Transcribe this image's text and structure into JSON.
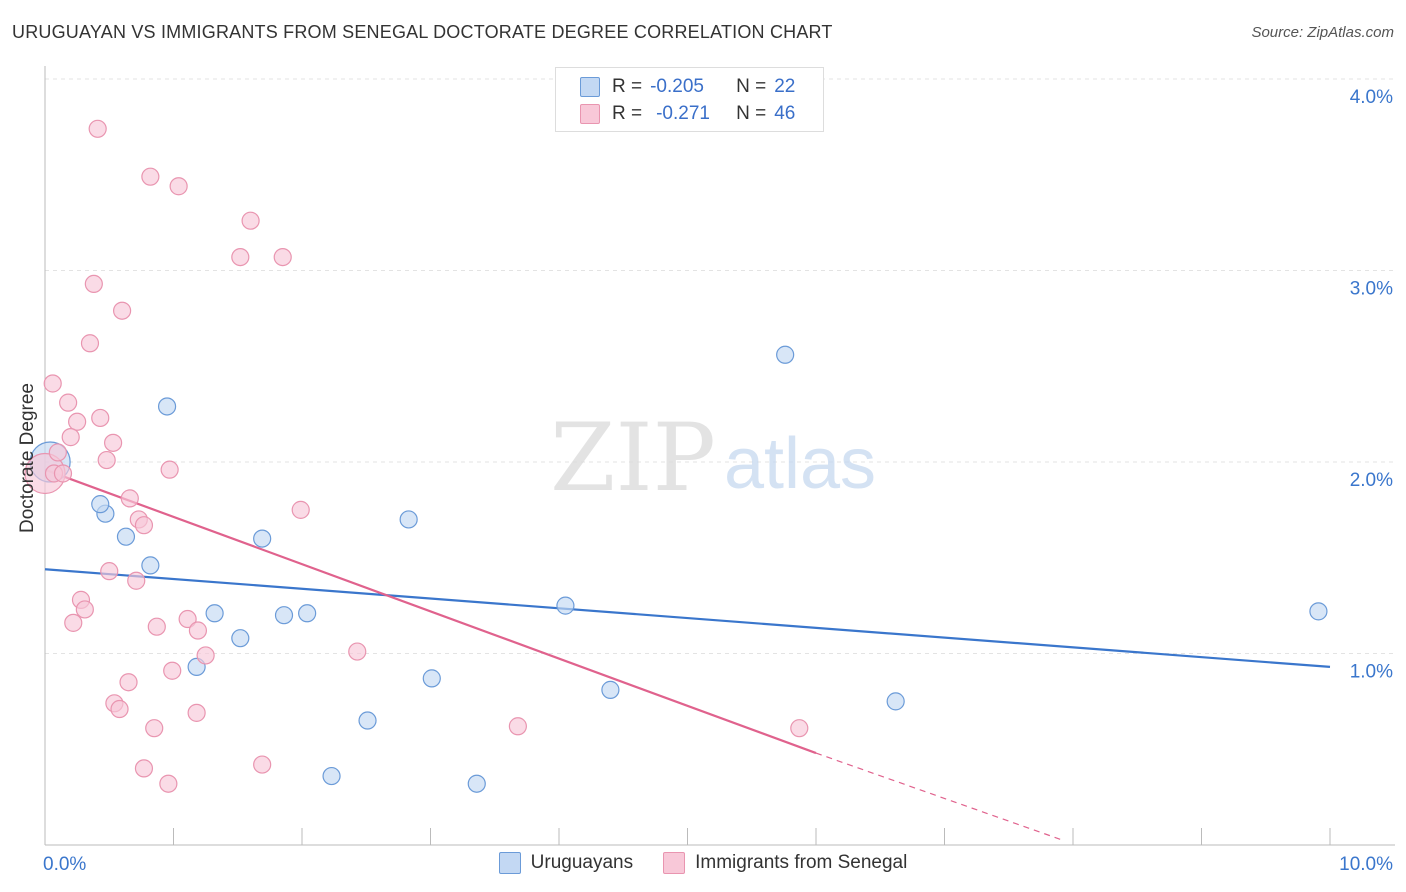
{
  "chart_data": {
    "type": "scatter",
    "title": "URUGUAYAN VS IMMIGRANTS FROM SENEGAL DOCTORATE DEGREE CORRELATION CHART",
    "source": "Source: ZipAtlas.com",
    "watermark_a": "ZIP",
    "watermark_b": "atlas",
    "ylabel": "Doctorate Degree",
    "xlabel": "",
    "xlim": [
      0,
      10
    ],
    "ylim": [
      0,
      4.0
    ],
    "x_tick_labels": {
      "min": "0.0%",
      "max": "10.0%"
    },
    "y_tick_labels": [
      "1.0%",
      "2.0%",
      "3.0%",
      "4.0%"
    ],
    "y_tick_values": [
      1.0,
      2.0,
      3.0,
      4.0
    ],
    "series": [
      {
        "name": "Uruguayans",
        "color": "#6b9bd8",
        "fill": "#c3d8f3",
        "line_color": "#3a76cc",
        "R": "-0.205",
        "N": "22",
        "trend": {
          "x0": 0.0,
          "y0": 1.44,
          "x1": 10.0,
          "y1": 0.93
        },
        "points": [
          [
            0.04,
            2.0,
            "large"
          ],
          [
            0.47,
            1.73
          ],
          [
            0.43,
            1.78
          ],
          [
            0.63,
            1.61
          ],
          [
            0.82,
            1.46
          ],
          [
            0.95,
            2.29
          ],
          [
            1.32,
            1.21
          ],
          [
            1.52,
            1.08
          ],
          [
            1.18,
            0.93
          ],
          [
            1.69,
            1.6
          ],
          [
            1.86,
            1.2
          ],
          [
            2.04,
            1.21
          ],
          [
            2.83,
            1.7
          ],
          [
            2.51,
            0.65
          ],
          [
            2.23,
            0.36
          ],
          [
            3.01,
            0.87
          ],
          [
            3.36,
            0.32
          ],
          [
            4.05,
            1.25
          ],
          [
            4.4,
            0.81
          ],
          [
            5.76,
            2.56
          ],
          [
            6.62,
            0.75
          ],
          [
            9.91,
            1.22
          ]
        ]
      },
      {
        "name": "Immigrants from Senegal",
        "color": "#e995b0",
        "fill": "#f8c8d8",
        "line_color": "#e0628d",
        "R": "-0.271",
        "N": "46",
        "trend": {
          "x0": 0.0,
          "y0": 1.96,
          "x1": 6.0,
          "y1": 0.48
        },
        "trend_dashed": {
          "x0": 6.0,
          "y0": 0.48,
          "x1": 7.9,
          "y1": 0.03
        },
        "points": [
          [
            0.0,
            1.94,
            "large"
          ],
          [
            0.41,
            3.74
          ],
          [
            0.82,
            3.49
          ],
          [
            1.04,
            3.44
          ],
          [
            1.6,
            3.26
          ],
          [
            1.52,
            3.07
          ],
          [
            1.85,
            3.07
          ],
          [
            0.38,
            2.93
          ],
          [
            0.6,
            2.79
          ],
          [
            0.35,
            2.62
          ],
          [
            0.06,
            2.41
          ],
          [
            0.18,
            2.31
          ],
          [
            0.25,
            2.21
          ],
          [
            0.43,
            2.23
          ],
          [
            0.2,
            2.13
          ],
          [
            0.53,
            2.1
          ],
          [
            0.1,
            2.05
          ],
          [
            0.48,
            2.01
          ],
          [
            0.07,
            1.94
          ],
          [
            0.14,
            1.94
          ],
          [
            0.97,
            1.96
          ],
          [
            0.66,
            1.81
          ],
          [
            0.73,
            1.7
          ],
          [
            0.77,
            1.67
          ],
          [
            1.99,
            1.75
          ],
          [
            0.5,
            1.43
          ],
          [
            0.71,
            1.38
          ],
          [
            0.28,
            1.28
          ],
          [
            0.31,
            1.23
          ],
          [
            0.22,
            1.16
          ],
          [
            0.87,
            1.14
          ],
          [
            1.11,
            1.18
          ],
          [
            1.19,
            1.12
          ],
          [
            1.25,
            0.99
          ],
          [
            0.99,
            0.91
          ],
          [
            2.43,
            1.01
          ],
          [
            0.65,
            0.85
          ],
          [
            0.54,
            0.74
          ],
          [
            0.58,
            0.71
          ],
          [
            1.18,
            0.69
          ],
          [
            0.85,
            0.61
          ],
          [
            3.68,
            0.62
          ],
          [
            5.87,
            0.61
          ],
          [
            0.77,
            0.4
          ],
          [
            1.69,
            0.42
          ],
          [
            0.96,
            0.32
          ]
        ]
      }
    ]
  },
  "legend": {
    "r_label": "R =",
    "n_label": "N =",
    "rows": [
      {
        "r": "-0.205",
        "n": "22"
      },
      {
        "r": "-0.271",
        "n": "46"
      }
    ]
  },
  "bottom_legend": {
    "items": [
      "Uruguayans",
      "Immigrants from Senegal"
    ]
  }
}
